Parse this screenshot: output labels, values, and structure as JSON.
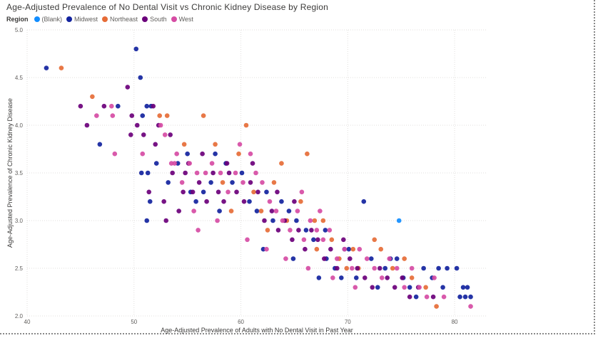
{
  "chart_data": {
    "type": "scatter",
    "title": "Age-Adjusted Prevalence of No Dental Visit vs Chronic Kidney Disease by Region",
    "xlabel": "Age-Adjusted Prevalence of Adults with No Dental Visit in Past Year",
    "ylabel": "Age-Adjusted Prevalence of Chronic Kidney Disease",
    "xlim": [
      40,
      83
    ],
    "ylim": [
      2.0,
      5.0
    ],
    "xticks": [
      "40",
      "50",
      "60",
      "70",
      "80"
    ],
    "xtick_values": [
      40,
      50,
      60,
      70,
      80
    ],
    "yticks": [
      "2.0",
      "2.5",
      "3.0",
      "3.5",
      "4.0",
      "4.5",
      "5.0"
    ],
    "ytick_values": [
      2.0,
      2.5,
      3.0,
      3.5,
      4.0,
      4.5,
      5.0
    ],
    "grid": true,
    "legend_title": "Region",
    "legend_position": "top-left",
    "series": [
      {
        "name": "(Blank)",
        "color": "#118dff",
        "points": [
          [
            74.8,
            3.0
          ]
        ]
      },
      {
        "name": "Midwest",
        "color": "#12239e",
        "points": [
          [
            41.8,
            4.6
          ],
          [
            46.8,
            3.8
          ],
          [
            48.5,
            4.2
          ],
          [
            50.2,
            4.8
          ],
          [
            50.6,
            4.5
          ],
          [
            50.8,
            4.1
          ],
          [
            51.2,
            4.2
          ],
          [
            51.6,
            4.2
          ],
          [
            50.7,
            3.5
          ],
          [
            51.3,
            3.5
          ],
          [
            51.5,
            3.2
          ],
          [
            51.2,
            3.0
          ],
          [
            52.1,
            3.6
          ],
          [
            53.2,
            3.4
          ],
          [
            54.1,
            3.6
          ],
          [
            55.0,
            3.7
          ],
          [
            55.8,
            3.2
          ],
          [
            56.5,
            3.3
          ],
          [
            57.2,
            3.4
          ],
          [
            58.0,
            3.1
          ],
          [
            58.6,
            3.6
          ],
          [
            59.2,
            3.4
          ],
          [
            60.1,
            3.5
          ],
          [
            60.8,
            3.2
          ],
          [
            61.5,
            3.1
          ],
          [
            62.4,
            3.3
          ],
          [
            63.0,
            3.0
          ],
          [
            63.8,
            3.2
          ],
          [
            64.5,
            3.1
          ],
          [
            65.2,
            3.0
          ],
          [
            66.1,
            2.9
          ],
          [
            66.8,
            2.8
          ],
          [
            67.3,
            2.4
          ],
          [
            68.0,
            2.6
          ],
          [
            68.8,
            2.5
          ],
          [
            69.4,
            2.4
          ],
          [
            70.1,
            2.7
          ],
          [
            70.8,
            2.4
          ],
          [
            71.5,
            3.2
          ],
          [
            72.2,
            2.6
          ],
          [
            72.8,
            2.3
          ],
          [
            73.5,
            2.5
          ],
          [
            74.0,
            2.6
          ],
          [
            74.6,
            2.6
          ],
          [
            75.2,
            2.4
          ],
          [
            75.8,
            2.3
          ],
          [
            76.4,
            2.2
          ],
          [
            77.1,
            2.5
          ],
          [
            77.9,
            2.4
          ],
          [
            78.5,
            2.5
          ],
          [
            78.9,
            2.3
          ],
          [
            79.3,
            2.5
          ],
          [
            80.2,
            2.5
          ],
          [
            80.8,
            2.3
          ],
          [
            81.2,
            2.3
          ],
          [
            81.5,
            2.2
          ],
          [
            81.0,
            2.2
          ],
          [
            80.5,
            2.2
          ],
          [
            57.6,
            3.7
          ],
          [
            55.3,
            3.3
          ],
          [
            62.1,
            2.7
          ],
          [
            64.9,
            2.6
          ],
          [
            67.9,
            2.9
          ],
          [
            69.7,
            2.7
          ]
        ]
      },
      {
        "name": "Northeast",
        "color": "#e66c37",
        "points": [
          [
            43.2,
            4.6
          ],
          [
            46.1,
            4.3
          ],
          [
            52.4,
            4.1
          ],
          [
            53.1,
            4.1
          ],
          [
            56.5,
            4.1
          ],
          [
            60.5,
            4.0
          ],
          [
            54.7,
            3.8
          ],
          [
            57.6,
            3.8
          ],
          [
            59.8,
            3.7
          ],
          [
            63.8,
            3.6
          ],
          [
            66.2,
            3.7
          ],
          [
            61.2,
            3.3
          ],
          [
            58.3,
            3.4
          ],
          [
            59.1,
            3.1
          ],
          [
            62.5,
            2.9
          ],
          [
            64.3,
            3.0
          ],
          [
            65.6,
            3.2
          ],
          [
            66.9,
            3.0
          ],
          [
            67.7,
            3.0
          ],
          [
            68.5,
            2.8
          ],
          [
            69.2,
            2.6
          ],
          [
            70.5,
            2.7
          ],
          [
            71.0,
            2.5
          ],
          [
            72.5,
            2.8
          ],
          [
            73.1,
            2.7
          ],
          [
            74.2,
            2.5
          ],
          [
            75.3,
            2.6
          ],
          [
            76.0,
            2.4
          ],
          [
            77.3,
            2.3
          ],
          [
            78.3,
            2.1
          ],
          [
            63.1,
            3.4
          ],
          [
            61.9,
            3.1
          ],
          [
            67.1,
            2.7
          ],
          [
            69.9,
            2.5
          ]
        ]
      },
      {
        "name": "South",
        "color": "#6b007b",
        "points": [
          [
            45.0,
            4.2
          ],
          [
            45.6,
            4.0
          ],
          [
            47.2,
            4.2
          ],
          [
            49.4,
            4.4
          ],
          [
            49.8,
            4.1
          ],
          [
            50.3,
            4.0
          ],
          [
            51.8,
            4.2
          ],
          [
            52.3,
            4.0
          ],
          [
            49.7,
            3.9
          ],
          [
            50.9,
            3.9
          ],
          [
            52.0,
            3.8
          ],
          [
            51.4,
            3.3
          ],
          [
            52.8,
            3.2
          ],
          [
            53.6,
            3.5
          ],
          [
            54.2,
            3.1
          ],
          [
            54.8,
            3.5
          ],
          [
            55.5,
            3.3
          ],
          [
            56.1,
            3.4
          ],
          [
            56.8,
            3.2
          ],
          [
            57.4,
            3.5
          ],
          [
            57.9,
            3.3
          ],
          [
            58.4,
            3.2
          ],
          [
            58.9,
            3.5
          ],
          [
            59.6,
            3.3
          ],
          [
            60.3,
            3.2
          ],
          [
            60.9,
            3.4
          ],
          [
            61.6,
            3.3
          ],
          [
            62.2,
            3.0
          ],
          [
            62.9,
            3.1
          ],
          [
            63.5,
            2.9
          ],
          [
            64.1,
            3.0
          ],
          [
            64.8,
            2.8
          ],
          [
            65.4,
            2.9
          ],
          [
            66.0,
            2.7
          ],
          [
            66.6,
            2.9
          ],
          [
            67.2,
            2.8
          ],
          [
            67.8,
            2.6
          ],
          [
            68.4,
            2.7
          ],
          [
            69.0,
            2.5
          ],
          [
            69.6,
            2.8
          ],
          [
            70.2,
            2.6
          ],
          [
            70.9,
            2.5
          ],
          [
            71.6,
            2.4
          ],
          [
            72.3,
            2.3
          ],
          [
            73.0,
            2.5
          ],
          [
            73.7,
            2.4
          ],
          [
            74.4,
            2.3
          ],
          [
            75.1,
            2.4
          ],
          [
            75.8,
            2.2
          ],
          [
            76.6,
            2.3
          ],
          [
            78.0,
            2.2
          ],
          [
            53.4,
            3.9
          ],
          [
            55.1,
            3.6
          ],
          [
            56.4,
            3.7
          ],
          [
            58.7,
            3.6
          ],
          [
            61.1,
            3.6
          ],
          [
            63.4,
            3.3
          ],
          [
            65.0,
            3.2
          ],
          [
            53.0,
            3.0
          ],
          [
            54.6,
            3.3
          ]
        ]
      },
      {
        "name": "West",
        "color": "#d64ca4",
        "points": [
          [
            46.5,
            4.1
          ],
          [
            47.9,
            4.2
          ],
          [
            48.0,
            4.1
          ],
          [
            48.2,
            3.7
          ],
          [
            50.8,
            3.7
          ],
          [
            52.5,
            4.0
          ],
          [
            52.9,
            3.9
          ],
          [
            53.5,
            3.6
          ],
          [
            54.0,
            3.7
          ],
          [
            54.5,
            3.4
          ],
          [
            55.2,
            3.6
          ],
          [
            55.9,
            3.5
          ],
          [
            56.7,
            3.5
          ],
          [
            57.3,
            3.6
          ],
          [
            58.1,
            3.5
          ],
          [
            58.8,
            3.3
          ],
          [
            59.5,
            3.5
          ],
          [
            60.2,
            3.4
          ],
          [
            60.9,
            3.7
          ],
          [
            61.4,
            3.5
          ],
          [
            62.0,
            3.4
          ],
          [
            62.7,
            3.2
          ],
          [
            63.3,
            3.1
          ],
          [
            63.9,
            3.0
          ],
          [
            64.6,
            2.9
          ],
          [
            65.3,
            3.1
          ],
          [
            65.9,
            2.8
          ],
          [
            66.5,
            3.0
          ],
          [
            67.1,
            2.9
          ],
          [
            67.7,
            2.8
          ],
          [
            68.3,
            2.9
          ],
          [
            69.0,
            2.6
          ],
          [
            69.7,
            2.7
          ],
          [
            70.4,
            2.5
          ],
          [
            71.1,
            2.7
          ],
          [
            71.8,
            2.6
          ],
          [
            72.5,
            2.5
          ],
          [
            73.2,
            2.4
          ],
          [
            73.9,
            2.6
          ],
          [
            74.6,
            2.5
          ],
          [
            75.3,
            2.3
          ],
          [
            76.0,
            2.5
          ],
          [
            76.7,
            2.3
          ],
          [
            77.4,
            2.2
          ],
          [
            78.1,
            2.4
          ],
          [
            79.0,
            2.2
          ],
          [
            81.5,
            2.1
          ],
          [
            56.0,
            2.9
          ],
          [
            57.8,
            3.0
          ],
          [
            60.6,
            2.8
          ],
          [
            62.4,
            2.7
          ],
          [
            64.2,
            2.6
          ],
          [
            66.3,
            2.5
          ],
          [
            68.6,
            2.4
          ],
          [
            70.7,
            2.3
          ],
          [
            59.9,
            3.8
          ],
          [
            55.6,
            3.1
          ],
          [
            53.8,
            3.6
          ],
          [
            65.7,
            3.3
          ],
          [
            67.4,
            3.1
          ]
        ]
      }
    ]
  },
  "legend": {
    "title": "Region",
    "items": [
      {
        "label": "(Blank)",
        "color": "#118dff"
      },
      {
        "label": "Midwest",
        "color": "#12239e"
      },
      {
        "label": "Northeast",
        "color": "#e66c37"
      },
      {
        "label": "South",
        "color": "#6b007b"
      },
      {
        "label": "West",
        "color": "#d64ca4"
      }
    ]
  }
}
